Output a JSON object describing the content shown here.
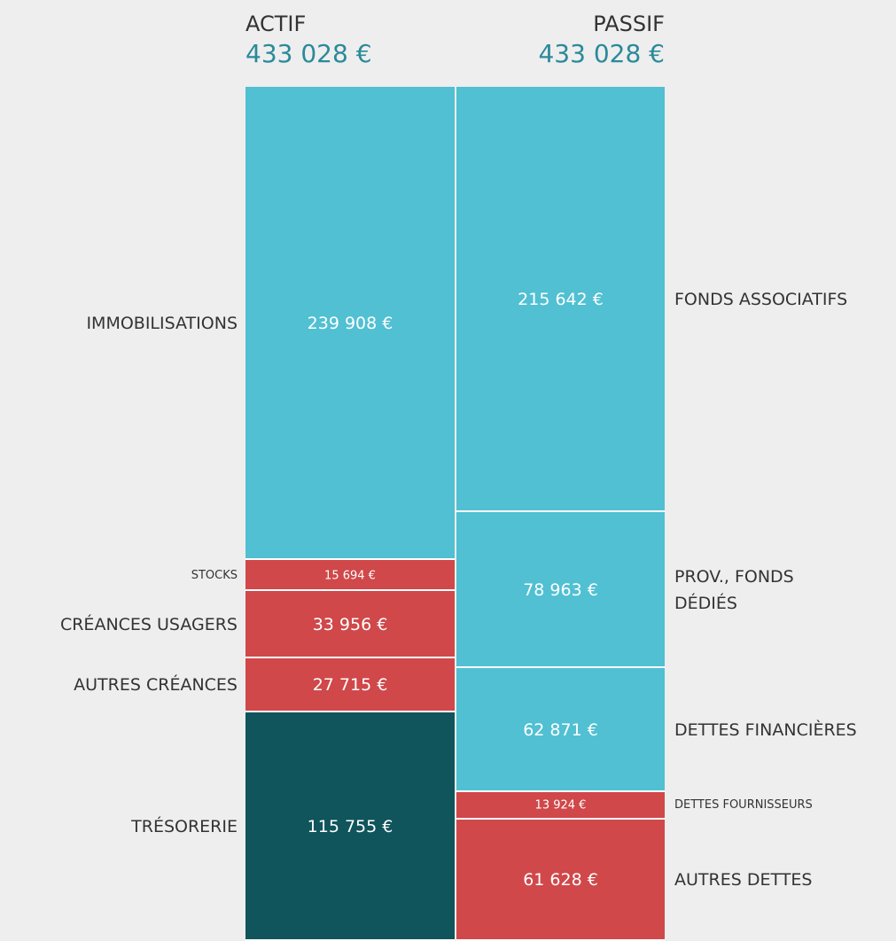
{
  "chart_data": {
    "type": "balance",
    "columns": [
      {
        "title": "ACTIF",
        "total": 433028,
        "total_label": "433 028 €",
        "segments": [
          {
            "name": "IMMOBILISATIONS",
            "value": 239908,
            "value_label": "239 908 €",
            "color": "#50c0d2"
          },
          {
            "name": "STOCKS",
            "value": 15694,
            "value_label": "15 694 €",
            "color": "#d0484a"
          },
          {
            "name": "CRÉANCES USAGERS",
            "value": 33956,
            "value_label": "33 956 €",
            "color": "#d0484a"
          },
          {
            "name": "AUTRES CRÉANCES",
            "value": 27715,
            "value_label": "27 715 €",
            "color": "#d0484a"
          },
          {
            "name": "TRÉSORERIE",
            "value": 115755,
            "value_label": "115 755 €",
            "color": "#10545c"
          }
        ]
      },
      {
        "title": "PASSIF",
        "total": 433028,
        "total_label": "433 028 €",
        "segments": [
          {
            "name": "FONDS ASSOCIATIFS",
            "value": 215642,
            "value_label": "215 642 €",
            "color": "#50c0d2"
          },
          {
            "name": "PROV., FONDS\nDÉDIÉS",
            "value": 78963,
            "value_label": "78 963 €",
            "color": "#50c0d2"
          },
          {
            "name": "DETTES FINANCIÈRES",
            "value": 62871,
            "value_label": "62 871 €",
            "color": "#50c0d2"
          },
          {
            "name": "DETTES FOURNISSEURS",
            "value": 13924,
            "value_label": "13 924 €",
            "color": "#d0484a"
          },
          {
            "name": "AUTRES DETTES",
            "value": 61628,
            "value_label": "61 628 €",
            "color": "#d0484a"
          }
        ]
      }
    ]
  }
}
